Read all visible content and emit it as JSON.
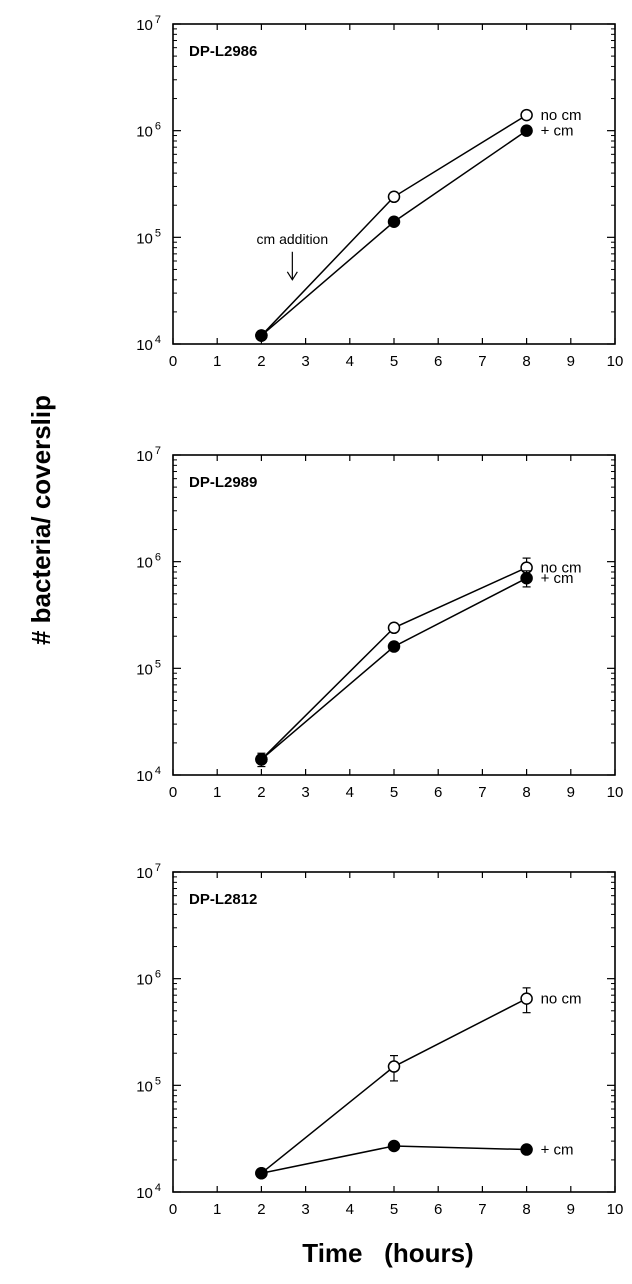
{
  "figure": {
    "ylabel": "# bacteria/ coverslip",
    "xlabel": "Time   (hours)"
  },
  "chart_data": [
    {
      "type": "line",
      "title": "DP-L2986",
      "xlim": [
        0,
        10
      ],
      "x_ticks": [
        0,
        1,
        2,
        3,
        4,
        5,
        6,
        7,
        8,
        9,
        10
      ],
      "yscale": "log",
      "ylim": [
        10000,
        10000000
      ],
      "y_tick_labels": [
        {
          "base": "10",
          "exp": "4",
          "value": 10000
        },
        {
          "base": "10",
          "exp": "5",
          "value": 100000
        },
        {
          "base": "10",
          "exp": "6",
          "value": 1000000
        },
        {
          "base": "10",
          "exp": "7",
          "value": 10000000
        }
      ],
      "series": [
        {
          "name": "no cm",
          "marker": "open-circle",
          "x": [
            2,
            5,
            8
          ],
          "y": [
            12000,
            240000,
            1400000
          ],
          "err": [
            0,
            0,
            0
          ]
        },
        {
          "name": "+ cm",
          "marker": "filled-circle",
          "x": [
            2,
            5,
            8
          ],
          "y": [
            12000,
            140000,
            1000000
          ],
          "err": [
            0,
            0,
            0
          ]
        }
      ],
      "annotations": [
        {
          "text": "cm addition",
          "x": 2.7,
          "y": 40000
        }
      ]
    },
    {
      "type": "line",
      "title": "DP-L2989",
      "xlim": [
        0,
        10
      ],
      "x_ticks": [
        0,
        1,
        2,
        3,
        4,
        5,
        6,
        7,
        8,
        9,
        10
      ],
      "yscale": "log",
      "ylim": [
        10000,
        10000000
      ],
      "y_tick_labels": [
        {
          "base": "10",
          "exp": "4",
          "value": 10000
        },
        {
          "base": "10",
          "exp": "5",
          "value": 100000
        },
        {
          "base": "10",
          "exp": "6",
          "value": 1000000
        },
        {
          "base": "10",
          "exp": "7",
          "value": 10000000
        }
      ],
      "series": [
        {
          "name": "no cm",
          "marker": "open-circle",
          "x": [
            2,
            5,
            8
          ],
          "y": [
            14000,
            240000,
            880000
          ],
          "err": [
            0,
            0,
            200000
          ]
        },
        {
          "name": "+ cm",
          "marker": "filled-circle",
          "x": [
            2,
            5,
            8
          ],
          "y": [
            14000,
            160000,
            700000
          ],
          "err": [
            2000,
            0,
            120000
          ]
        }
      ],
      "annotations": []
    },
    {
      "type": "line",
      "title": "DP-L2812",
      "xlim": [
        0,
        10
      ],
      "x_ticks": [
        0,
        1,
        2,
        3,
        4,
        5,
        6,
        7,
        8,
        9,
        10
      ],
      "yscale": "log",
      "ylim": [
        10000,
        10000000
      ],
      "y_tick_labels": [
        {
          "base": "10",
          "exp": "4",
          "value": 10000
        },
        {
          "base": "10",
          "exp": "5",
          "value": 100000
        },
        {
          "base": "10",
          "exp": "6",
          "value": 1000000
        },
        {
          "base": "10",
          "exp": "7",
          "value": 10000000
        }
      ],
      "series": [
        {
          "name": "no cm",
          "marker": "open-circle",
          "x": [
            2,
            5,
            8
          ],
          "y": [
            15000,
            150000,
            650000
          ],
          "err": [
            0,
            40000,
            170000
          ]
        },
        {
          "name": "+ cm",
          "marker": "filled-circle",
          "x": [
            2,
            5,
            8
          ],
          "y": [
            15000,
            27000,
            25000
          ],
          "err": [
            0,
            0,
            2000
          ]
        }
      ],
      "annotations": []
    }
  ]
}
